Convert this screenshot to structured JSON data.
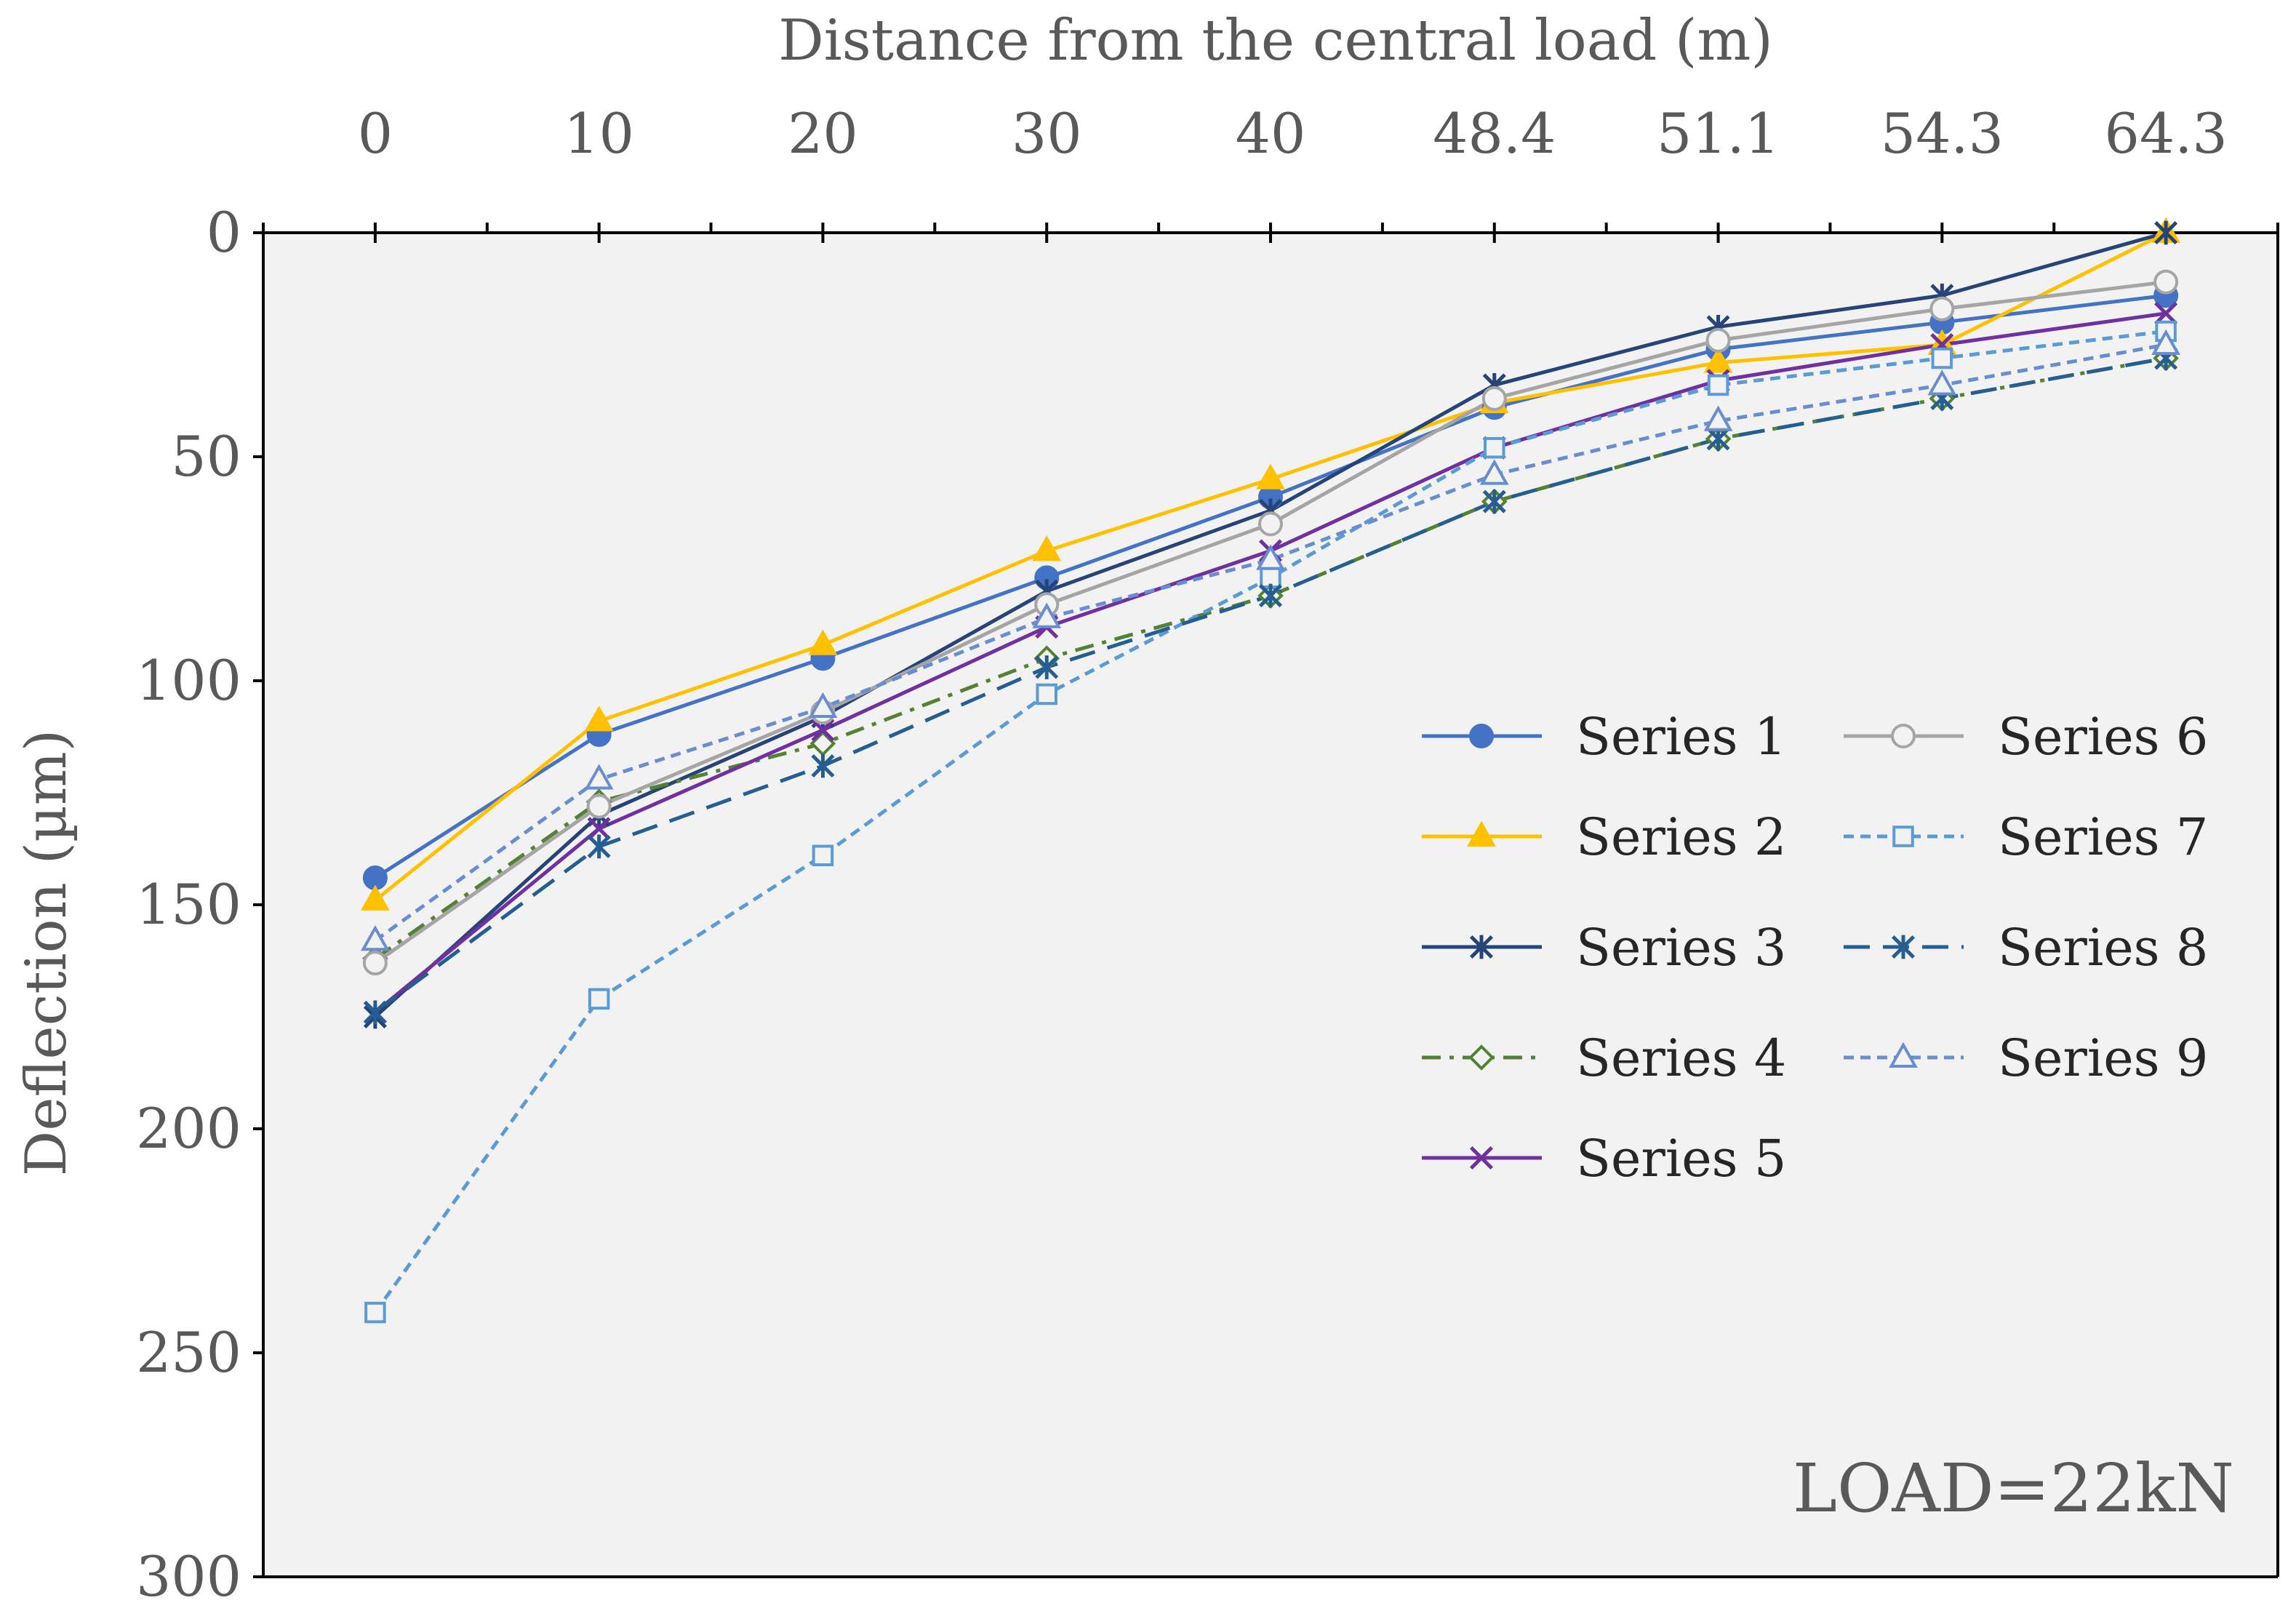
{
  "chart_data": {
    "type": "line",
    "title": "",
    "xlabel": "Distance from the central load (m)",
    "ylabel": "Deflection (µm)",
    "categories": [
      "0",
      "10",
      "20",
      "30",
      "40",
      "48.4",
      "51.1",
      "54.3",
      "64.3"
    ],
    "ylim": [
      0,
      300
    ],
    "y_inverted": true,
    "y_ticks": [
      "0",
      "50",
      "100",
      "150",
      "200",
      "250",
      "300"
    ],
    "grid": false,
    "legend_position": "center-right",
    "annotation": "LOAD=22kN",
    "series": [
      {
        "name": "Series 1",
        "values": [
          144,
          112,
          95,
          77,
          59,
          39,
          26,
          20,
          14
        ],
        "color": "#4472C4",
        "dash": "solid",
        "marker": "circle-filled"
      },
      {
        "name": "Series 2",
        "values": [
          149,
          109,
          92,
          71,
          55,
          38,
          29,
          25,
          0
        ],
        "color": "#FFC000",
        "dash": "solid",
        "marker": "triangle-filled"
      },
      {
        "name": "Series 3",
        "values": [
          175,
          130,
          108,
          80,
          62,
          34,
          21,
          14,
          0
        ],
        "color": "#264478",
        "dash": "solid",
        "marker": "star"
      },
      {
        "name": "Series 4",
        "values": [
          162,
          127,
          114,
          95,
          81,
          60,
          46,
          37,
          28
        ],
        "color": "#548235",
        "dash": "dashdot",
        "marker": "diamond-open"
      },
      {
        "name": "Series 5",
        "values": [
          174,
          133,
          111,
          88,
          71,
          48,
          33,
          25,
          18
        ],
        "color": "#7030A0",
        "dash": "solid",
        "marker": "x"
      },
      {
        "name": "Series 6",
        "values": [
          163,
          128,
          107,
          83,
          65,
          37,
          24,
          17,
          11
        ],
        "color": "#A5A5A5",
        "dash": "solid",
        "marker": "circle-open"
      },
      {
        "name": "Series 7",
        "values": [
          241,
          171,
          139,
          103,
          77,
          48,
          34,
          28,
          22
        ],
        "color": "#5B9BD5",
        "dash": "dotted",
        "marker": "square-open"
      },
      {
        "name": "Series 8",
        "values": [
          174,
          137,
          119,
          97,
          81,
          60,
          46,
          37,
          28
        ],
        "color": "#255E91",
        "dash": "longdash",
        "marker": "star"
      },
      {
        "name": "Series 9",
        "values": [
          158,
          122,
          106,
          86,
          73,
          54,
          42,
          34,
          25
        ],
        "color": "#698ED0",
        "dash": "dotted",
        "marker": "triangle-open"
      }
    ]
  }
}
